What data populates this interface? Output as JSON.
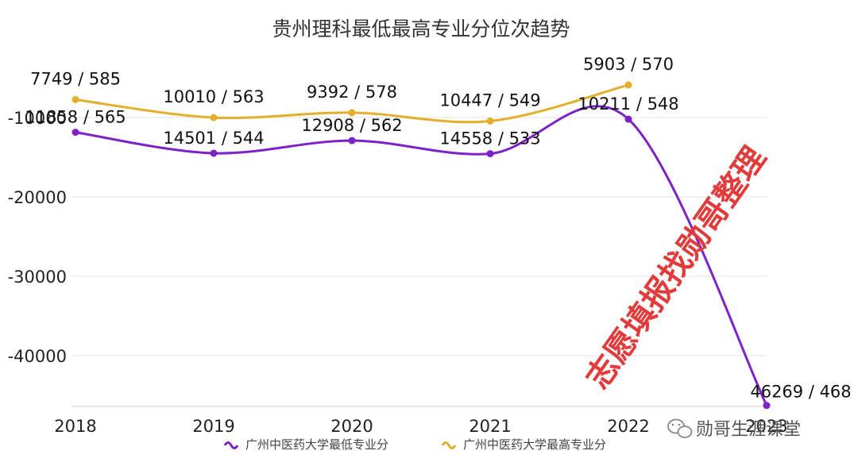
{
  "chart_data": {
    "type": "line",
    "title": "贵州理科最低最高专业分位次趋势",
    "categories": [
      "2018",
      "2019",
      "2020",
      "2021",
      "2022",
      "2023"
    ],
    "x_tick_labels": [
      "2018",
      "2019",
      "2020",
      "2021",
      "2022",
      "2023"
    ],
    "y_ticks": [
      -10000,
      -20000,
      -30000,
      -40000
    ],
    "y_tick_labels": [
      "-10000",
      "-20000",
      "-30000",
      "-40000"
    ],
    "ylim": [
      -46300,
      0
    ],
    "grid": true,
    "legend_position": "bottom",
    "series": [
      {
        "name": "广州中医药大学最低专业分",
        "color": "#7d22c9",
        "values": [
          -11858,
          -14501,
          -12908,
          -14558,
          -10211,
          -46269
        ],
        "labels": [
          "11858 / 565",
          "14501 / 544",
          "12908 / 562",
          "14558 / 533",
          "10211 / 548",
          "46269 / 468"
        ]
      },
      {
        "name": "广州中医药大学最高专业分",
        "color": "#e3ae2a",
        "values": [
          -7749,
          -10010,
          -9392,
          -10447,
          -5903,
          null
        ],
        "labels": [
          "7749 / 585",
          "10010 / 563",
          "9392 / 578",
          "10447 / 549",
          "5903 / 570",
          null
        ]
      }
    ]
  },
  "watermark": {
    "text": "志愿填报找勋哥整理",
    "color": "#e23b3b"
  },
  "wechat_badge": {
    "icon": "wechat-icon",
    "text": "勋哥生涯课堂"
  }
}
